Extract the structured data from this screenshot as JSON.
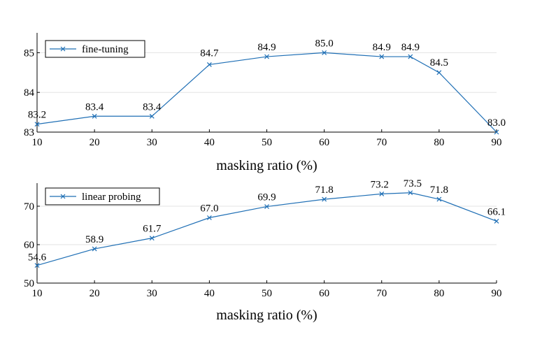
{
  "colors": {
    "series": "#1f6fb5",
    "grid": "#e3e3e3",
    "axis": "#000000"
  },
  "chart_data": [
    {
      "type": "line",
      "legend": "fine-tuning",
      "legend_position": "top-left",
      "grid": true,
      "xlabel": "masking ratio (%)",
      "ylabel": "",
      "xlim": [
        10,
        90
      ],
      "ylim": [
        83,
        85.5
      ],
      "xticks": [
        10,
        20,
        30,
        40,
        50,
        60,
        70,
        80,
        90
      ],
      "yticks": [
        83,
        84,
        85
      ],
      "x": [
        10,
        20,
        30,
        40,
        50,
        60,
        70,
        75,
        80,
        90
      ],
      "y": [
        83.2,
        83.4,
        83.4,
        84.7,
        84.9,
        85.0,
        84.9,
        84.9,
        84.5,
        83.0
      ],
      "labels": [
        "83.2",
        "83.4",
        "83.4",
        "84.7",
        "84.9",
        "85.0",
        "84.9",
        "84.9",
        "84.5",
        "83.0"
      ]
    },
    {
      "type": "line",
      "legend": "linear probing",
      "legend_position": "top-left",
      "grid": true,
      "xlabel": "masking ratio (%)",
      "ylabel": "",
      "xlim": [
        10,
        90
      ],
      "ylim": [
        50,
        76
      ],
      "xticks": [
        10,
        20,
        30,
        40,
        50,
        60,
        70,
        80,
        90
      ],
      "yticks": [
        50,
        60,
        70
      ],
      "x": [
        10,
        20,
        30,
        40,
        50,
        60,
        70,
        75,
        80,
        90
      ],
      "y": [
        54.6,
        58.9,
        61.7,
        67.0,
        69.9,
        71.8,
        73.2,
        73.5,
        71.8,
        66.1
      ],
      "labels": [
        "54.6",
        "58.9",
        "61.7",
        "67.0",
        "69.9",
        "71.8",
        "73.2",
        "73.5",
        "71.8",
        "66.1"
      ]
    }
  ]
}
